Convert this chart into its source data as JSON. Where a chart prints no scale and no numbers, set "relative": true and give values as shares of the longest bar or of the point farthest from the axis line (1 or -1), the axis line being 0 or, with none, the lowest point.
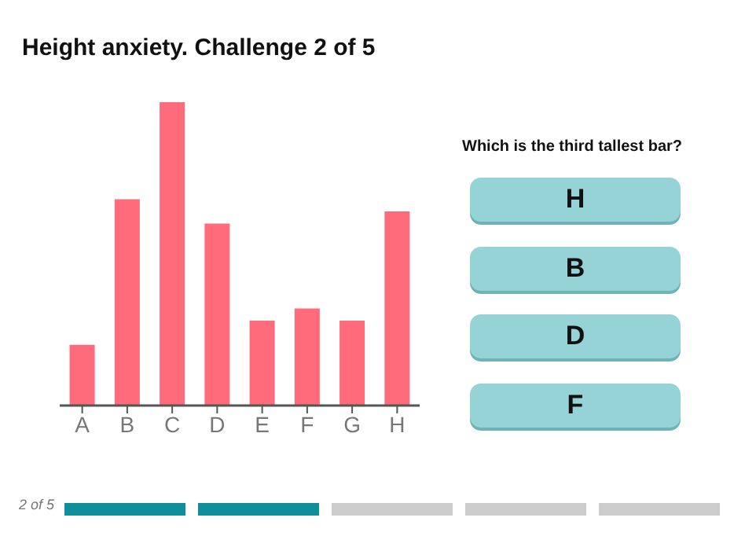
{
  "chart_data": {
    "type": "bar",
    "title": "Height anxiety. Challenge 2 of 5",
    "categories": [
      "A",
      "B",
      "C",
      "D",
      "E",
      "F",
      "G",
      "H"
    ],
    "values": [
      0.2,
      0.68,
      1,
      0.6,
      0.28,
      0.32,
      0.28,
      0.64
    ],
    "color": "#fe6b7a",
    "relative": true,
    "grid": false,
    "legend": false,
    "annotations": [
      "Which is the third tallest bar?",
      "H",
      "B",
      "D",
      "F",
      "2 of 5"
    ]
  }
}
